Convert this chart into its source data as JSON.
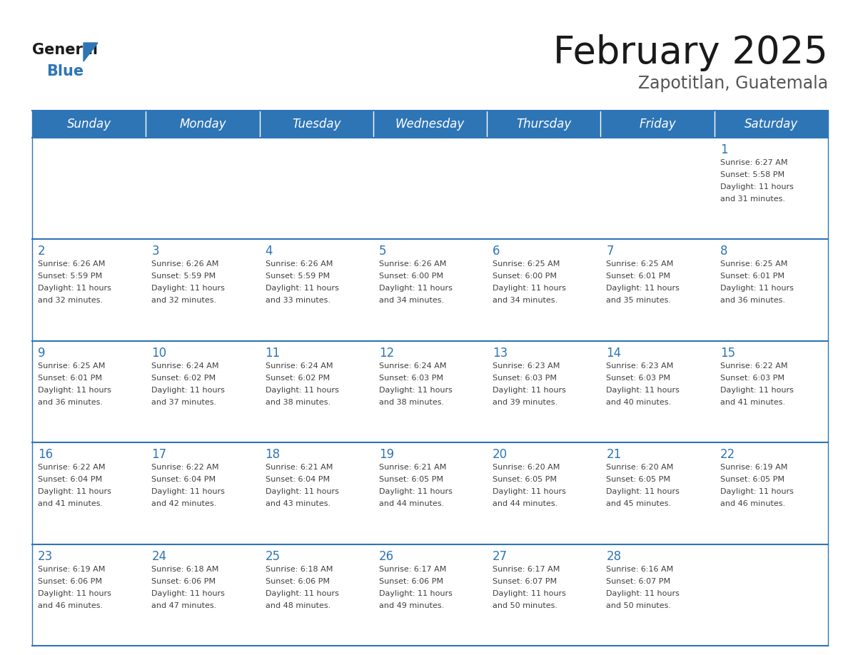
{
  "title": "February 2025",
  "subtitle": "Zapotitlan, Guatemala",
  "days_of_week": [
    "Sunday",
    "Monday",
    "Tuesday",
    "Wednesday",
    "Thursday",
    "Friday",
    "Saturday"
  ],
  "header_bg": "#2E75B6",
  "header_text_color": "#FFFFFF",
  "cell_bg": "#FFFFFF",
  "grid_line_color": "#2E75B6",
  "day_num_color": "#2E75B6",
  "text_color": "#404040",
  "logo_general_color": "#1a1a1a",
  "logo_blue_color": "#2E75B6",
  "calendar_data": [
    [
      null,
      null,
      null,
      null,
      null,
      null,
      {
        "day": "1",
        "sunrise": "6:27 AM",
        "sunset": "5:58 PM",
        "daylight": "11 hours\nand 31 minutes."
      }
    ],
    [
      {
        "day": "2",
        "sunrise": "6:26 AM",
        "sunset": "5:59 PM",
        "daylight": "11 hours\nand 32 minutes."
      },
      {
        "day": "3",
        "sunrise": "6:26 AM",
        "sunset": "5:59 PM",
        "daylight": "11 hours\nand 32 minutes."
      },
      {
        "day": "4",
        "sunrise": "6:26 AM",
        "sunset": "5:59 PM",
        "daylight": "11 hours\nand 33 minutes."
      },
      {
        "day": "5",
        "sunrise": "6:26 AM",
        "sunset": "6:00 PM",
        "daylight": "11 hours\nand 34 minutes."
      },
      {
        "day": "6",
        "sunrise": "6:25 AM",
        "sunset": "6:00 PM",
        "daylight": "11 hours\nand 34 minutes."
      },
      {
        "day": "7",
        "sunrise": "6:25 AM",
        "sunset": "6:01 PM",
        "daylight": "11 hours\nand 35 minutes."
      },
      {
        "day": "8",
        "sunrise": "6:25 AM",
        "sunset": "6:01 PM",
        "daylight": "11 hours\nand 36 minutes."
      }
    ],
    [
      {
        "day": "9",
        "sunrise": "6:25 AM",
        "sunset": "6:01 PM",
        "daylight": "11 hours\nand 36 minutes."
      },
      {
        "day": "10",
        "sunrise": "6:24 AM",
        "sunset": "6:02 PM",
        "daylight": "11 hours\nand 37 minutes."
      },
      {
        "day": "11",
        "sunrise": "6:24 AM",
        "sunset": "6:02 PM",
        "daylight": "11 hours\nand 38 minutes."
      },
      {
        "day": "12",
        "sunrise": "6:24 AM",
        "sunset": "6:03 PM",
        "daylight": "11 hours\nand 38 minutes."
      },
      {
        "day": "13",
        "sunrise": "6:23 AM",
        "sunset": "6:03 PM",
        "daylight": "11 hours\nand 39 minutes."
      },
      {
        "day": "14",
        "sunrise": "6:23 AM",
        "sunset": "6:03 PM",
        "daylight": "11 hours\nand 40 minutes."
      },
      {
        "day": "15",
        "sunrise": "6:22 AM",
        "sunset": "6:03 PM",
        "daylight": "11 hours\nand 41 minutes."
      }
    ],
    [
      {
        "day": "16",
        "sunrise": "6:22 AM",
        "sunset": "6:04 PM",
        "daylight": "11 hours\nand 41 minutes."
      },
      {
        "day": "17",
        "sunrise": "6:22 AM",
        "sunset": "6:04 PM",
        "daylight": "11 hours\nand 42 minutes."
      },
      {
        "day": "18",
        "sunrise": "6:21 AM",
        "sunset": "6:04 PM",
        "daylight": "11 hours\nand 43 minutes."
      },
      {
        "day": "19",
        "sunrise": "6:21 AM",
        "sunset": "6:05 PM",
        "daylight": "11 hours\nand 44 minutes."
      },
      {
        "day": "20",
        "sunrise": "6:20 AM",
        "sunset": "6:05 PM",
        "daylight": "11 hours\nand 44 minutes."
      },
      {
        "day": "21",
        "sunrise": "6:20 AM",
        "sunset": "6:05 PM",
        "daylight": "11 hours\nand 45 minutes."
      },
      {
        "day": "22",
        "sunrise": "6:19 AM",
        "sunset": "6:05 PM",
        "daylight": "11 hours\nand 46 minutes."
      }
    ],
    [
      {
        "day": "23",
        "sunrise": "6:19 AM",
        "sunset": "6:06 PM",
        "daylight": "11 hours\nand 46 minutes."
      },
      {
        "day": "24",
        "sunrise": "6:18 AM",
        "sunset": "6:06 PM",
        "daylight": "11 hours\nand 47 minutes."
      },
      {
        "day": "25",
        "sunrise": "6:18 AM",
        "sunset": "6:06 PM",
        "daylight": "11 hours\nand 48 minutes."
      },
      {
        "day": "26",
        "sunrise": "6:17 AM",
        "sunset": "6:06 PM",
        "daylight": "11 hours\nand 49 minutes."
      },
      {
        "day": "27",
        "sunrise": "6:17 AM",
        "sunset": "6:07 PM",
        "daylight": "11 hours\nand 50 minutes."
      },
      {
        "day": "28",
        "sunrise": "6:16 AM",
        "sunset": "6:07 PM",
        "daylight": "11 hours\nand 50 minutes."
      },
      null
    ]
  ]
}
